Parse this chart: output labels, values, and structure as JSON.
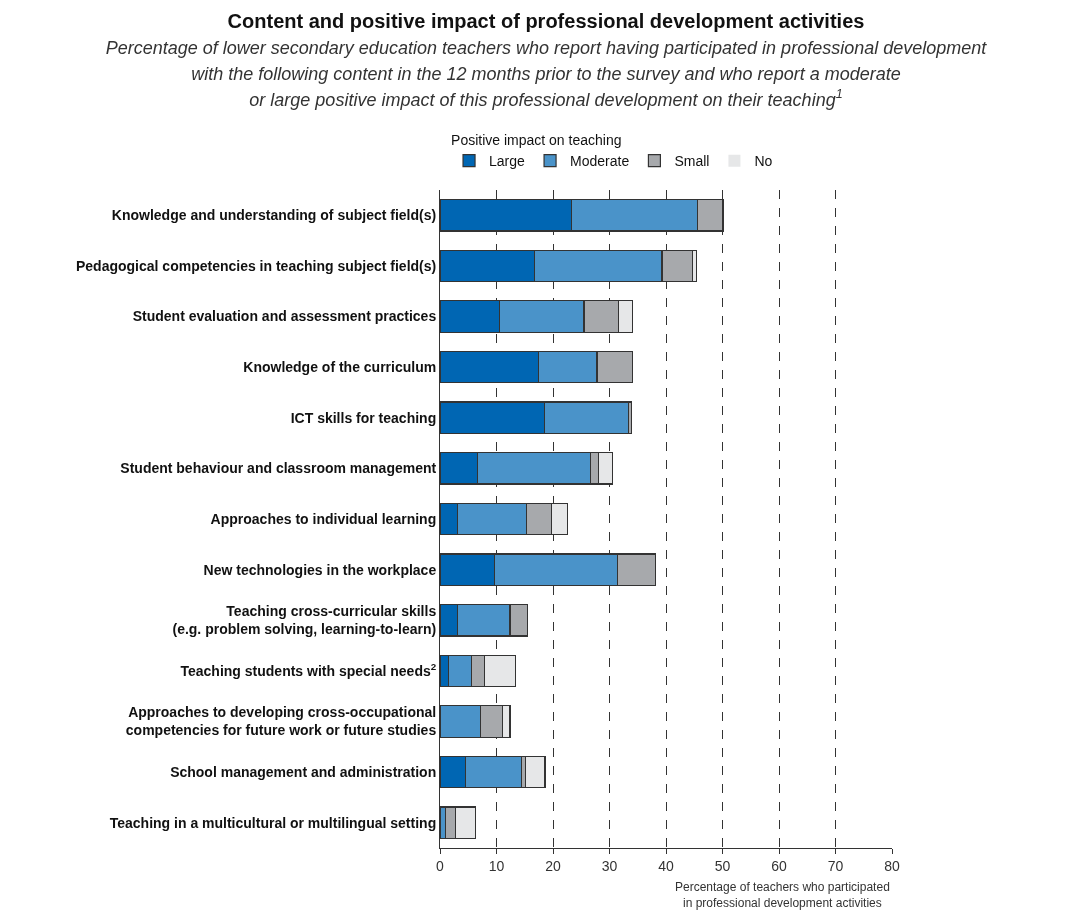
{
  "chart_data": {
    "type": "bar",
    "orientation": "horizontal",
    "stacked": true,
    "title": "Content and positive impact of professional development activities",
    "subtitle": "Percentage of lower secondary education teachers who report having participated in professional development\nwith the following content in the 12 months prior to the survey and who report a moderate\nor large positive impact of this professional development on their teaching$^{1}$",
    "xlabel": "Percentage of teachers who participated\nin professional development activities",
    "legend_title": "Positive impact on teaching",
    "categories": [
      "Knowledge and understanding of subject field(s)",
      "Pedagogical competencies in teaching subject field(s)",
      "Student evaluation and assessment practices",
      "Knowledge of the curriculum",
      "ICT skills for teaching",
      "Student behaviour and classroom management",
      "Approaches to individual learning",
      "New technologies in the workplace",
      "Teaching cross-curricular skills\n(e.g. problem solving, learning-to-learn)",
      "Teaching students with special needs$^{2}$",
      "Approaches to developing cross-occupational\ncompetencies for future work or future studies",
      "School management and administration",
      "Teaching in a multicultural or multilingual setting"
    ],
    "series": [
      {
        "name": "Large",
        "color": "#0066b3",
        "values": [
          23.3,
          16.7,
          10.5,
          17.4,
          18.5,
          6.6,
          3.1,
          9.7,
          3.1,
          1.5,
          0,
          4.5,
          0
        ]
      },
      {
        "name": "Moderate",
        "color": "#4a93c9",
        "values": [
          22.3,
          22.6,
          15.0,
          10.4,
          14.8,
          20.0,
          12.2,
          21.7,
          9.3,
          4.1,
          7.2,
          9.9,
          1.0
        ]
      },
      {
        "name": "Small",
        "color": "#a7a9ac",
        "values": [
          4.5,
          5.4,
          6.1,
          6.3,
          0.6,
          1.4,
          4.5,
          6.7,
          3.1,
          2.3,
          3.9,
          0.7,
          1.7
        ]
      },
      {
        "name": "No",
        "color": "#e6e7e8",
        "values": [
          0,
          0.7,
          2.5,
          0,
          0,
          2.5,
          2.7,
          0,
          0,
          5.4,
          1.3,
          3.5,
          3.6
        ]
      }
    ],
    "xlim": [
      0,
      80
    ],
    "xticks": [
      0,
      10,
      20,
      30,
      40,
      50,
      60,
      70,
      80
    ],
    "grid": "x",
    "legend": "top"
  }
}
